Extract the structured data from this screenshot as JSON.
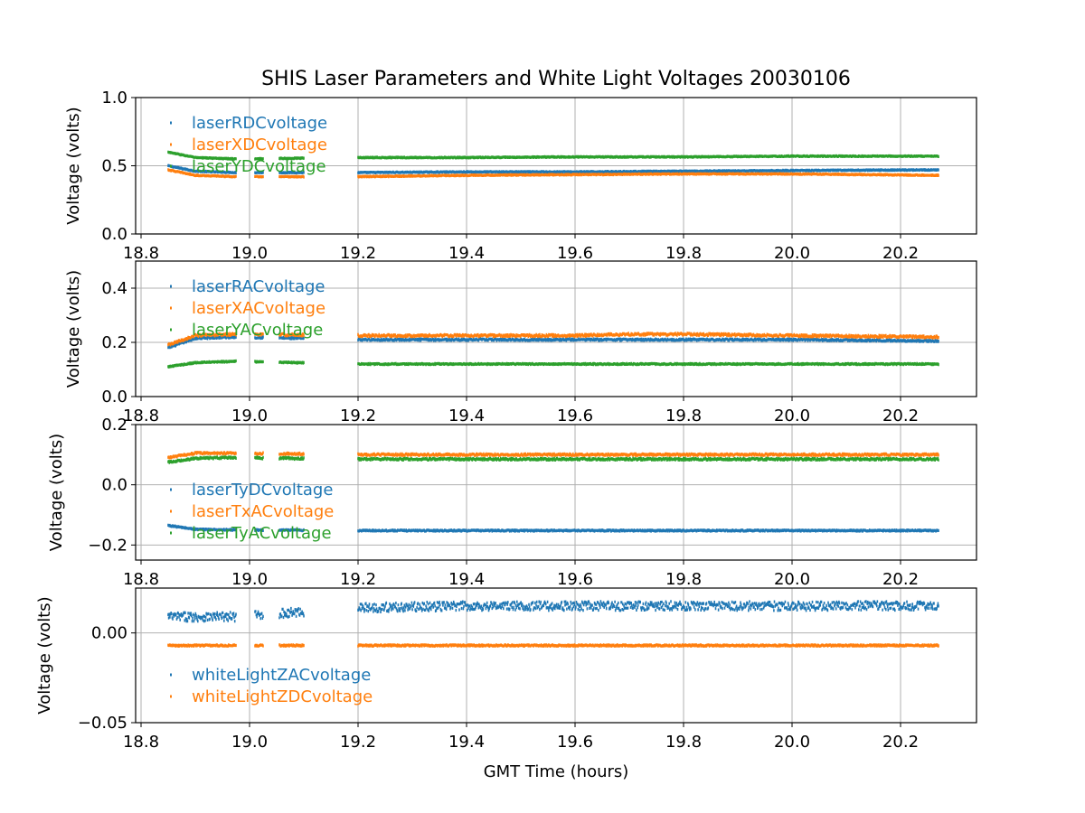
{
  "chart_data": {
    "type": "line",
    "title": "SHIS Laser Parameters and White Light Voltages 20030106",
    "xlabel": "GMT Time (hours)",
    "xlim": [
      18.79,
      20.34
    ],
    "xticks": [
      18.8,
      19.0,
      19.2,
      19.4,
      19.6,
      19.8,
      20.0,
      20.2
    ],
    "xtick_labels": [
      "18.8",
      "19.0",
      "19.2",
      "19.4",
      "19.6",
      "19.8",
      "20.0",
      "20.2"
    ],
    "grid": true,
    "legend_position": "upper-left",
    "segments": [
      [
        18.85,
        18.975
      ],
      [
        19.01,
        19.025
      ],
      [
        19.055,
        19.1
      ],
      [
        19.2,
        20.27
      ]
    ],
    "panels": [
      {
        "ylabel": "Voltage (volts)",
        "ylim": [
          0.0,
          1.0
        ],
        "yticks": [
          0.0,
          0.5,
          1.0
        ],
        "ytick_labels": [
          "0.0",
          "0.5",
          "1.0"
        ],
        "series": [
          {
            "name": "laserRDCvoltage",
            "color": "#1f77b4",
            "noise": 0.003,
            "x": [
              18.85,
              18.9,
              18.975,
              19.2,
              19.4,
              19.6,
              19.8,
              20.0,
              20.27
            ],
            "y": [
              0.5,
              0.46,
              0.45,
              0.45,
              0.455,
              0.455,
              0.46,
              0.465,
              0.47
            ]
          },
          {
            "name": "laserXDCvoltage",
            "color": "#ff7f0e",
            "noise": 0.003,
            "x": [
              18.85,
              18.9,
              18.975,
              19.2,
              19.4,
              19.6,
              19.8,
              20.0,
              20.27
            ],
            "y": [
              0.47,
              0.43,
              0.42,
              0.42,
              0.43,
              0.435,
              0.44,
              0.44,
              0.43
            ]
          },
          {
            "name": "laserYDCvoltage",
            "color": "#2ca02c",
            "noise": 0.003,
            "x": [
              18.85,
              18.9,
              18.975,
              19.2,
              19.4,
              19.6,
              19.8,
              20.0,
              20.27
            ],
            "y": [
              0.6,
              0.56,
              0.55,
              0.56,
              0.56,
              0.565,
              0.565,
              0.57,
              0.57
            ]
          }
        ]
      },
      {
        "ylabel": "Voltage (volts)",
        "ylim": [
          0.0,
          0.5
        ],
        "yticks": [
          0.0,
          0.2,
          0.4
        ],
        "ytick_labels": [
          "0.0",
          "0.2",
          "0.4"
        ],
        "series": [
          {
            "name": "laserRACvoltage",
            "color": "#1f77b4",
            "noise": 0.003,
            "x": [
              18.85,
              18.9,
              18.975,
              19.2,
              19.4,
              19.6,
              19.8,
              20.0,
              20.27
            ],
            "y": [
              0.18,
              0.215,
              0.22,
              0.21,
              0.21,
              0.21,
              0.21,
              0.21,
              0.205
            ]
          },
          {
            "name": "laserXACvoltage",
            "color": "#ff7f0e",
            "noise": 0.004,
            "x": [
              18.85,
              18.9,
              18.975,
              19.2,
              19.4,
              19.6,
              19.7,
              19.8,
              20.0,
              20.27
            ],
            "y": [
              0.19,
              0.225,
              0.23,
              0.225,
              0.225,
              0.225,
              0.23,
              0.23,
              0.225,
              0.22
            ]
          },
          {
            "name": "laserYACvoltage",
            "color": "#2ca02c",
            "noise": 0.002,
            "x": [
              18.85,
              18.9,
              18.975,
              19.2,
              19.4,
              19.6,
              19.8,
              20.0,
              20.27
            ],
            "y": [
              0.11,
              0.125,
              0.13,
              0.12,
              0.12,
              0.12,
              0.12,
              0.12,
              0.12
            ]
          }
        ]
      },
      {
        "ylabel": "Voltage (volts)",
        "ylim": [
          -0.25,
          0.2
        ],
        "yticks": [
          -0.2,
          0.0,
          0.2
        ],
        "ytick_labels": [
          "−0.2",
          "0.0",
          "0.2"
        ],
        "series": [
          {
            "name": "laserTyDCvoltage",
            "color": "#1f77b4",
            "noise": 0.002,
            "x": [
              18.85,
              18.9,
              18.975,
              19.2,
              19.4,
              19.6,
              19.8,
              20.0,
              20.27
            ],
            "y": [
              -0.135,
              -0.148,
              -0.15,
              -0.152,
              -0.152,
              -0.152,
              -0.152,
              -0.152,
              -0.152
            ]
          },
          {
            "name": "laserTxACvoltage",
            "color": "#ff7f0e",
            "noise": 0.003,
            "x": [
              18.85,
              18.9,
              18.975,
              19.2,
              19.4,
              19.6,
              19.8,
              20.0,
              20.27
            ],
            "y": [
              0.09,
              0.105,
              0.105,
              0.1,
              0.1,
              0.1,
              0.1,
              0.1,
              0.1
            ]
          },
          {
            "name": "laserTyACvoltage",
            "color": "#2ca02c",
            "noise": 0.003,
            "x": [
              18.85,
              18.9,
              18.975,
              19.2,
              19.4,
              19.6,
              19.8,
              20.0,
              20.27
            ],
            "y": [
              0.075,
              0.088,
              0.09,
              0.085,
              0.085,
              0.085,
              0.085,
              0.085,
              0.085
            ]
          }
        ]
      },
      {
        "ylabel": "Voltage (volts)",
        "ylim": [
          -0.05,
          0.025
        ],
        "yticks": [
          -0.05,
          0.0
        ],
        "ytick_labels": [
          "−0.05",
          "0.00"
        ],
        "series": [
          {
            "name": "whiteLightZACvoltage",
            "color": "#1f77b4",
            "noise": 0.0025,
            "x": [
              18.85,
              18.975,
              19.2,
              19.4,
              19.6,
              19.8,
              20.0,
              20.27
            ],
            "y": [
              0.009,
              0.009,
              0.014,
              0.015,
              0.015,
              0.015,
              0.015,
              0.015
            ]
          },
          {
            "name": "whiteLightZDCvoltage",
            "color": "#ff7f0e",
            "noise": 0.0004,
            "x": [
              18.85,
              18.975,
              19.2,
              19.6,
              20.27
            ],
            "y": [
              -0.007,
              -0.007,
              -0.007,
              -0.007,
              -0.007
            ]
          }
        ]
      }
    ]
  }
}
